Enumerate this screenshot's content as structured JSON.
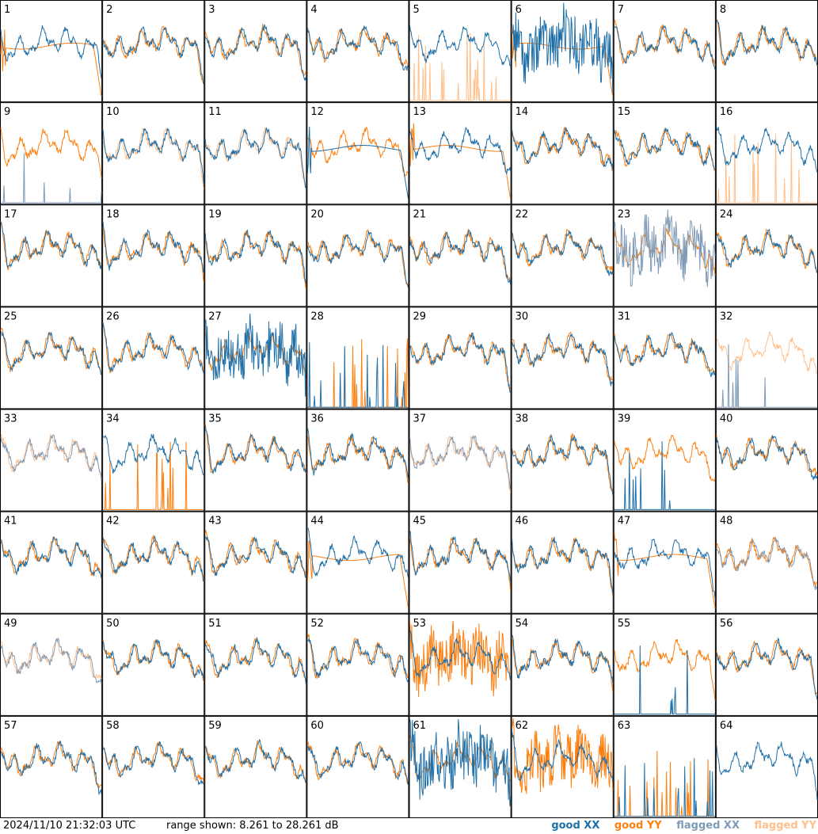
{
  "footer": {
    "timestamp": "2024/11/10 21:32:03 UTC",
    "range_text": "range shown: 8.261 to 28.261 dB"
  },
  "legend": [
    {
      "label": "good XX",
      "color": "#1f6fa8"
    },
    {
      "label": "good YY",
      "color": "#ff7f0e"
    },
    {
      "label": "flagged XX",
      "color": "#7f9bb8"
    },
    {
      "label": "flagged YY",
      "color": "#ffbf8a"
    }
  ],
  "chart_data": {
    "type": "line",
    "grid_rows": 8,
    "grid_cols": 8,
    "ylim": [
      8.261,
      28.261
    ],
    "y_unit": "dB",
    "series_keys": [
      "XX",
      "YY"
    ],
    "panels": [
      {
        "label": "1",
        "xx": "good",
        "yy": "good",
        "shape_xx": "normal",
        "shape_yy": "smooth"
      },
      {
        "label": "2",
        "xx": "good",
        "yy": "good",
        "shape_xx": "normal",
        "shape_yy": "normal"
      },
      {
        "label": "3",
        "xx": "good",
        "yy": "good",
        "shape_xx": "normal",
        "shape_yy": "normal"
      },
      {
        "label": "4",
        "xx": "good",
        "yy": "good",
        "shape_xx": "normal",
        "shape_yy": "normal"
      },
      {
        "label": "5",
        "xx": "good",
        "yy": "flagged",
        "shape_xx": "normal",
        "shape_yy": "spikes"
      },
      {
        "label": "6",
        "xx": "good",
        "yy": "good",
        "shape_xx": "noisy",
        "shape_yy": "smooth"
      },
      {
        "label": "7",
        "xx": "good",
        "yy": "good",
        "shape_xx": "normal",
        "shape_yy": "normal"
      },
      {
        "label": "8",
        "xx": "good",
        "yy": "good",
        "shape_xx": "normal",
        "shape_yy": "normal"
      },
      {
        "label": "9",
        "xx": "flagged",
        "yy": "good",
        "shape_xx": "spikes",
        "shape_yy": "normal"
      },
      {
        "label": "10",
        "xx": "good",
        "yy": "flagged",
        "shape_xx": "normal",
        "shape_yy": "normal"
      },
      {
        "label": "11",
        "xx": "good",
        "yy": "flagged",
        "shape_xx": "normal",
        "shape_yy": "normal"
      },
      {
        "label": "12",
        "xx": "good",
        "yy": "good",
        "shape_xx": "smooth",
        "shape_yy": "normal"
      },
      {
        "label": "13",
        "xx": "good",
        "yy": "good",
        "shape_xx": "normal",
        "shape_yy": "smooth"
      },
      {
        "label": "14",
        "xx": "good",
        "yy": "good",
        "shape_xx": "normal",
        "shape_yy": "normal"
      },
      {
        "label": "15",
        "xx": "good",
        "yy": "good",
        "shape_xx": "normal",
        "shape_yy": "normal"
      },
      {
        "label": "16",
        "xx": "good",
        "yy": "flagged",
        "shape_xx": "normal",
        "shape_yy": "spikes"
      },
      {
        "label": "17",
        "xx": "good",
        "yy": "good",
        "shape_xx": "normal",
        "shape_yy": "normal"
      },
      {
        "label": "18",
        "xx": "good",
        "yy": "good",
        "shape_xx": "normal",
        "shape_yy": "normal"
      },
      {
        "label": "19",
        "xx": "good",
        "yy": "good",
        "shape_xx": "normal",
        "shape_yy": "normal"
      },
      {
        "label": "20",
        "xx": "good",
        "yy": "good",
        "shape_xx": "normal",
        "shape_yy": "normal"
      },
      {
        "label": "21",
        "xx": "good",
        "yy": "good",
        "shape_xx": "normal",
        "shape_yy": "normal"
      },
      {
        "label": "22",
        "xx": "good",
        "yy": "good",
        "shape_xx": "normal",
        "shape_yy": "normal"
      },
      {
        "label": "23",
        "xx": "flagged",
        "yy": "good",
        "shape_xx": "noisy",
        "shape_yy": "normal"
      },
      {
        "label": "24",
        "xx": "good",
        "yy": "good",
        "shape_xx": "normal",
        "shape_yy": "normal"
      },
      {
        "label": "25",
        "xx": "good",
        "yy": "good",
        "shape_xx": "normal",
        "shape_yy": "normal"
      },
      {
        "label": "26",
        "xx": "good",
        "yy": "good",
        "shape_xx": "normal",
        "shape_yy": "normal"
      },
      {
        "label": "27",
        "xx": "good",
        "yy": "good",
        "shape_xx": "noisy",
        "shape_yy": "normal"
      },
      {
        "label": "28",
        "xx": "good",
        "yy": "good",
        "shape_xx": "spikes",
        "shape_yy": "spikes"
      },
      {
        "label": "29",
        "xx": "good",
        "yy": "good",
        "shape_xx": "normal",
        "shape_yy": "normal"
      },
      {
        "label": "30",
        "xx": "good",
        "yy": "good",
        "shape_xx": "normal",
        "shape_yy": "normal"
      },
      {
        "label": "31",
        "xx": "good",
        "yy": "good",
        "shape_xx": "normal",
        "shape_yy": "normal"
      },
      {
        "label": "32",
        "xx": "flagged",
        "yy": "flagged",
        "shape_xx": "spikes",
        "shape_yy": "normal"
      },
      {
        "label": "33",
        "xx": "flagged",
        "yy": "flagged",
        "shape_xx": "normal",
        "shape_yy": "normal"
      },
      {
        "label": "34",
        "xx": "good",
        "yy": "good",
        "shape_xx": "normal",
        "shape_yy": "spikes"
      },
      {
        "label": "35",
        "xx": "good",
        "yy": "good",
        "shape_xx": "normal",
        "shape_yy": "normal"
      },
      {
        "label": "36",
        "xx": "good",
        "yy": "good",
        "shape_xx": "normal",
        "shape_yy": "normal"
      },
      {
        "label": "37",
        "xx": "flagged",
        "yy": "flagged",
        "shape_xx": "normal",
        "shape_yy": "normal"
      },
      {
        "label": "38",
        "xx": "good",
        "yy": "good",
        "shape_xx": "normal",
        "shape_yy": "normal"
      },
      {
        "label": "39",
        "xx": "good",
        "yy": "good",
        "shape_xx": "spikes",
        "shape_yy": "normal"
      },
      {
        "label": "40",
        "xx": "good",
        "yy": "good",
        "shape_xx": "normal",
        "shape_yy": "normal"
      },
      {
        "label": "41",
        "xx": "good",
        "yy": "good",
        "shape_xx": "normal",
        "shape_yy": "normal"
      },
      {
        "label": "42",
        "xx": "good",
        "yy": "good",
        "shape_xx": "normal",
        "shape_yy": "normal"
      },
      {
        "label": "43",
        "xx": "good",
        "yy": "good",
        "shape_xx": "normal",
        "shape_yy": "normal"
      },
      {
        "label": "44",
        "xx": "good",
        "yy": "good",
        "shape_xx": "normal",
        "shape_yy": "smooth"
      },
      {
        "label": "45",
        "xx": "good",
        "yy": "good",
        "shape_xx": "normal",
        "shape_yy": "normal"
      },
      {
        "label": "46",
        "xx": "good",
        "yy": "good",
        "shape_xx": "normal",
        "shape_yy": "normal"
      },
      {
        "label": "47",
        "xx": "good",
        "yy": "good",
        "shape_xx": "normal",
        "shape_yy": "smooth"
      },
      {
        "label": "48",
        "xx": "flagged",
        "yy": "good",
        "shape_xx": "normal",
        "shape_yy": "normal"
      },
      {
        "label": "49",
        "xx": "flagged",
        "yy": "flagged",
        "shape_xx": "normal",
        "shape_yy": "normal"
      },
      {
        "label": "50",
        "xx": "good",
        "yy": "good",
        "shape_xx": "normal",
        "shape_yy": "normal"
      },
      {
        "label": "51",
        "xx": "good",
        "yy": "good",
        "shape_xx": "normal",
        "shape_yy": "normal"
      },
      {
        "label": "52",
        "xx": "good",
        "yy": "good",
        "shape_xx": "normal",
        "shape_yy": "normal"
      },
      {
        "label": "53",
        "xx": "good",
        "yy": "good",
        "shape_xx": "normal",
        "shape_yy": "noisy"
      },
      {
        "label": "54",
        "xx": "good",
        "yy": "good",
        "shape_xx": "normal",
        "shape_yy": "normal"
      },
      {
        "label": "55",
        "xx": "good",
        "yy": "good",
        "shape_xx": "spikes",
        "shape_yy": "normal"
      },
      {
        "label": "56",
        "xx": "good",
        "yy": "good",
        "shape_xx": "normal",
        "shape_yy": "normal"
      },
      {
        "label": "57",
        "xx": "good",
        "yy": "good",
        "shape_xx": "normal",
        "shape_yy": "normal"
      },
      {
        "label": "58",
        "xx": "good",
        "yy": "good",
        "shape_xx": "normal",
        "shape_yy": "normal"
      },
      {
        "label": "59",
        "xx": "good",
        "yy": "good",
        "shape_xx": "normal",
        "shape_yy": "normal"
      },
      {
        "label": "60",
        "xx": "good",
        "yy": "good",
        "shape_xx": "normal",
        "shape_yy": "normal"
      },
      {
        "label": "61",
        "xx": "good",
        "yy": "good",
        "shape_xx": "noisy",
        "shape_yy": "normal"
      },
      {
        "label": "62",
        "xx": "good",
        "yy": "good",
        "shape_xx": "normal",
        "shape_yy": "noisy"
      },
      {
        "label": "63",
        "xx": "good",
        "yy": "good",
        "shape_xx": "spikes",
        "shape_yy": "spikes"
      },
      {
        "label": "64",
        "xx": "good",
        "yy": "good",
        "shape_xx": "normal",
        "shape_yy": "none"
      }
    ]
  }
}
